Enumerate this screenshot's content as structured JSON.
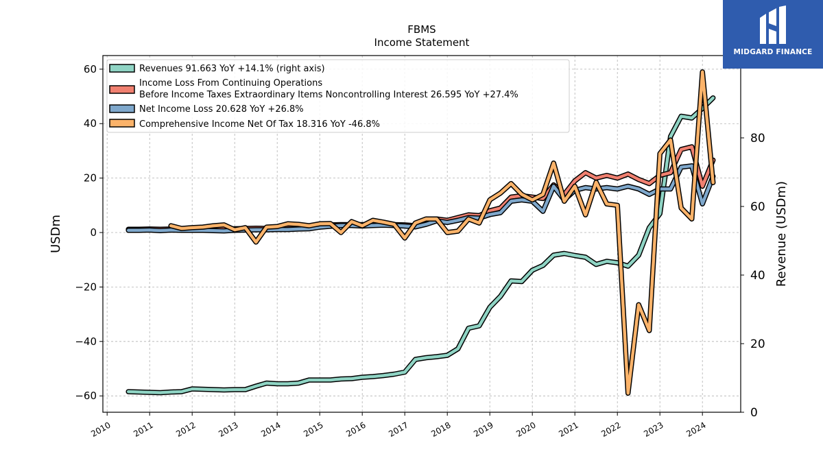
{
  "brand": {
    "name": "MIDGARD FINANCE",
    "bg_color": "#2f5cae",
    "icon": "midgard-logo-icon"
  },
  "chart_data": {
    "type": "line",
    "title": "FBMS",
    "subtitle": "Income Statement",
    "ylabel_left": "USDm",
    "ylabel_right": "Revenue (USDm)",
    "xlabel": "",
    "xlim": [
      2009.9,
      2024.9
    ],
    "ylim_left": [
      -66,
      65
    ],
    "ylim_right": [
      0,
      104
    ],
    "yticks_left": [
      -60,
      -40,
      -20,
      0,
      20,
      40,
      60
    ],
    "yticks_right": [
      0,
      20,
      40,
      60,
      80
    ],
    "xticks": [
      2010,
      2011,
      2012,
      2013,
      2014,
      2015,
      2016,
      2017,
      2018,
      2019,
      2020,
      2021,
      2022,
      2023,
      2024
    ],
    "grid": true,
    "legend_position": "top-left",
    "series": [
      {
        "name": "Revenues",
        "legend": "Revenues  91.663 YoY +14.1% (right axis)",
        "axis": "right",
        "color": "#8fd4c4",
        "x": [
          2010.5,
          2010.75,
          2011.0,
          2011.25,
          2011.5,
          2011.75,
          2012.0,
          2012.25,
          2012.5,
          2012.75,
          2013.0,
          2013.25,
          2013.5,
          2013.75,
          2014.0,
          2014.25,
          2014.5,
          2014.75,
          2015.0,
          2015.25,
          2015.5,
          2015.75,
          2016.0,
          2016.25,
          2016.5,
          2016.75,
          2017.0,
          2017.25,
          2017.5,
          2017.75,
          2018.0,
          2018.25,
          2018.5,
          2018.75,
          2019.0,
          2019.25,
          2019.5,
          2019.75,
          2020.0,
          2020.25,
          2020.5,
          2020.75,
          2021.0,
          2021.25,
          2021.5,
          2021.75,
          2022.0,
          2022.25,
          2022.5,
          2022.75,
          2023.0,
          2023.25,
          2023.5,
          2023.75,
          2024.0,
          2024.25
        ],
        "values": [
          6.0,
          5.9,
          5.8,
          5.7,
          5.9,
          6.0,
          6.8,
          6.7,
          6.6,
          6.5,
          6.6,
          6.6,
          7.6,
          8.5,
          8.3,
          8.3,
          8.5,
          9.4,
          9.4,
          9.4,
          9.7,
          9.8,
          10.2,
          10.4,
          10.7,
          11.1,
          11.7,
          15.4,
          15.9,
          16.2,
          16.6,
          18.5,
          24.5,
          25.2,
          30.6,
          33.8,
          38.3,
          38.1,
          41.4,
          42.8,
          45.8,
          46.3,
          45.7,
          45.2,
          43.1,
          44.0,
          43.6,
          42.6,
          45.8,
          53.8,
          57.9,
          80.4,
          86.3,
          85.8,
          88.6,
          91.663
        ]
      },
      {
        "name": "Income Loss From Continuing Operations Before Income Taxes Extraordinary Items Noncontrolling Interest",
        "legend_line1": "Income Loss From Continuing Operations",
        "legend_line2": "Before Income Taxes Extraordinary Items Noncontrolling Interest  26.595 YoY +27.4%",
        "axis": "left",
        "color": "#f08070",
        "x": [
          2010.5,
          2010.75,
          2011.0,
          2011.25,
          2011.5,
          2011.75,
          2012.0,
          2012.25,
          2012.5,
          2012.75,
          2013.0,
          2013.25,
          2013.5,
          2013.75,
          2014.0,
          2014.25,
          2014.5,
          2014.75,
          2015.0,
          2015.25,
          2015.5,
          2015.75,
          2016.0,
          2016.25,
          2016.5,
          2016.75,
          2017.0,
          2017.25,
          2017.5,
          2017.75,
          2018.0,
          2018.25,
          2018.5,
          2018.75,
          2019.0,
          2019.25,
          2019.5,
          2019.75,
          2020.0,
          2020.25,
          2020.5,
          2020.75,
          2021.0,
          2021.25,
          2021.5,
          2021.75,
          2022.0,
          2022.25,
          2022.5,
          2022.75,
          2023.0,
          2023.25,
          2023.5,
          2023.75,
          2024.0,
          2024.25
        ],
        "values": [
          1.2,
          1.2,
          1.3,
          1.2,
          1.3,
          1.3,
          1.3,
          1.3,
          1.2,
          1.3,
          1.4,
          1.5,
          1.6,
          1.5,
          1.6,
          1.6,
          1.7,
          1.8,
          2.6,
          2.8,
          2.9,
          2.9,
          2.9,
          3.0,
          2.9,
          2.9,
          2.8,
          2.5,
          3.5,
          5.0,
          4.5,
          5.5,
          6.5,
          6.2,
          8.0,
          9.0,
          13.0,
          13.5,
          13.0,
          12.5,
          17.5,
          14.0,
          19.0,
          22.0,
          20.0,
          21.0,
          20.0,
          21.5,
          19.5,
          18.0,
          21.0,
          22.0,
          30.5,
          31.5,
          17.0,
          26.595
        ]
      },
      {
        "name": "Net Income Loss",
        "legend": "Net Income Loss  20.628 YoY +26.8%",
        "axis": "left",
        "color": "#7fa8cc",
        "x": [
          2010.5,
          2010.75,
          2011.0,
          2011.25,
          2011.5,
          2011.75,
          2012.0,
          2012.25,
          2012.5,
          2012.75,
          2013.0,
          2013.25,
          2013.5,
          2013.75,
          2014.0,
          2014.25,
          2014.5,
          2014.75,
          2015.0,
          2015.25,
          2015.5,
          2015.75,
          2016.0,
          2016.25,
          2016.5,
          2016.75,
          2017.0,
          2017.25,
          2017.5,
          2017.75,
          2018.0,
          2018.25,
          2018.5,
          2018.75,
          2019.0,
          2019.25,
          2019.5,
          2019.75,
          2020.0,
          2020.25,
          2020.5,
          2020.75,
          2021.0,
          2021.25,
          2021.5,
          2021.75,
          2022.0,
          2022.25,
          2022.5,
          2022.75,
          2023.0,
          2023.25,
          2023.5,
          2023.75,
          2024.0,
          2024.25
        ],
        "values": [
          0.8,
          0.8,
          0.9,
          0.7,
          0.9,
          0.8,
          0.8,
          0.8,
          0.7,
          0.6,
          0.8,
          0.9,
          1.0,
          1.0,
          1.1,
          1.1,
          1.3,
          1.4,
          2.0,
          2.3,
          2.6,
          2.6,
          2.4,
          2.6,
          2.7,
          2.6,
          2.4,
          2.1,
          3.0,
          4.3,
          3.7,
          4.5,
          5.5,
          5.3,
          6.6,
          7.3,
          11.5,
          12.0,
          11.5,
          7.8,
          17.0,
          12.0,
          15.5,
          16.5,
          16.0,
          16.5,
          16.0,
          17.0,
          16.0,
          14.0,
          16.0,
          16.0,
          24.0,
          24.5,
          10.5,
          20.628
        ]
      },
      {
        "name": "Comprehensive Income Net Of Tax",
        "legend": "Comprehensive Income Net Of Tax  18.316 YoY -46.8%",
        "axis": "left",
        "color": "#fbb36a",
        "x": [
          2011.5,
          2011.75,
          2012.0,
          2012.25,
          2012.5,
          2012.75,
          2013.0,
          2013.25,
          2013.5,
          2013.75,
          2014.0,
          2014.25,
          2014.5,
          2014.75,
          2015.0,
          2015.25,
          2015.5,
          2015.75,
          2016.0,
          2016.25,
          2016.5,
          2016.75,
          2017.0,
          2017.25,
          2017.5,
          2017.75,
          2018.0,
          2018.25,
          2018.5,
          2018.75,
          2019.0,
          2019.25,
          2019.5,
          2019.75,
          2020.0,
          2020.25,
          2020.5,
          2020.75,
          2021.0,
          2021.25,
          2021.5,
          2021.75,
          2022.0,
          2022.25,
          2022.5,
          2022.75,
          2023.0,
          2023.25,
          2023.5,
          2023.75,
          2024.0,
          2024.25
        ],
        "values": [
          2.5,
          1.5,
          1.8,
          2.0,
          2.5,
          2.8,
          1.0,
          1.8,
          -3.5,
          2.0,
          2.2,
          3.2,
          3.0,
          2.5,
          3.2,
          3.3,
          0.0,
          4.0,
          2.5,
          4.5,
          3.8,
          3.0,
          -2.0,
          3.5,
          5.0,
          5.0,
          0.0,
          0.5,
          5.0,
          3.5,
          12.0,
          14.5,
          18.0,
          14.0,
          12.0,
          14.0,
          25.5,
          11.5,
          17.0,
          6.5,
          18.5,
          10.5,
          10.0,
          -59.0,
          -26.5,
          -36.0,
          29.0,
          34.0,
          9.0,
          5.0,
          59.0,
          18.316
        ]
      }
    ]
  }
}
